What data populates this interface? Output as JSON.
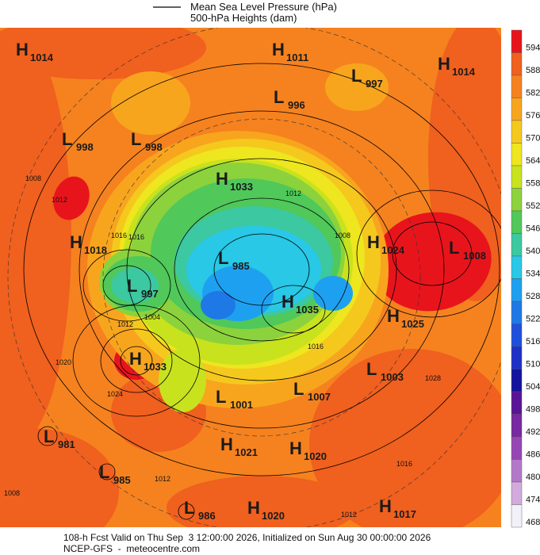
{
  "legend": {
    "line1": "Mean Sea Level Pressure (hPa)",
    "line2": "500-hPa Heights (dam)"
  },
  "centers": [
    {
      "type": "H",
      "value": 1014
    },
    {
      "type": "H",
      "value": 1011
    },
    {
      "type": "L",
      "value": 997
    },
    {
      "type": "H",
      "value": 1014
    },
    {
      "type": "L",
      "value": 996
    },
    {
      "type": "L",
      "value": 998
    },
    {
      "type": "L",
      "value": 998
    },
    {
      "type": "H",
      "value": 1033
    },
    {
      "type": "H",
      "value": 1018
    },
    {
      "type": "H",
      "value": 1024
    },
    {
      "type": "L",
      "value": 1008
    },
    {
      "type": "L",
      "value": 985
    },
    {
      "type": "L",
      "value": 997
    },
    {
      "type": "H",
      "value": 1035
    },
    {
      "type": "H",
      "value": 1025
    },
    {
      "type": "H",
      "value": 1033
    },
    {
      "type": "L",
      "value": 1003
    },
    {
      "type": "L",
      "value": 1007
    },
    {
      "type": "L",
      "value": 1001
    },
    {
      "type": "L",
      "value": 981
    },
    {
      "type": "H",
      "value": 1021
    },
    {
      "type": "H",
      "value": 1020
    },
    {
      "type": "L",
      "value": 985
    },
    {
      "type": "L",
      "value": 986
    },
    {
      "type": "H",
      "value": 1020
    },
    {
      "type": "H",
      "value": 1017
    }
  ],
  "contour_labels": [
    1008,
    1012,
    1016,
    1012,
    1004,
    1020,
    1024,
    1012,
    1016,
    1016,
    1012,
    1008,
    1028,
    1016,
    1012,
    1008
  ],
  "colorbar": [
    {
      "value": 594,
      "color": "#e8141c"
    },
    {
      "value": 588,
      "color": "#f0601e"
    },
    {
      "value": 582,
      "color": "#f5821f"
    },
    {
      "value": 576,
      "color": "#f8a51e"
    },
    {
      "value": 570,
      "color": "#f5c81e"
    },
    {
      "value": 564,
      "color": "#eee61e"
    },
    {
      "value": 558,
      "color": "#c8e21e"
    },
    {
      "value": 552,
      "color": "#8cd23c"
    },
    {
      "value": 546,
      "color": "#50c85a"
    },
    {
      "value": 540,
      "color": "#3cc8a0"
    },
    {
      "value": 534,
      "color": "#28c8e6"
    },
    {
      "value": 528,
      "color": "#1ea0f0"
    },
    {
      "value": 522,
      "color": "#1e78e6"
    },
    {
      "value": 516,
      "color": "#1e50dc"
    },
    {
      "value": 510,
      "color": "#1e32c8"
    },
    {
      "value": 504,
      "color": "#1414a0"
    },
    {
      "value": 498,
      "color": "#5a1496"
    },
    {
      "value": 492,
      "color": "#7828a0"
    },
    {
      "value": 486,
      "color": "#9646b4"
    },
    {
      "value": 480,
      "color": "#b478c8"
    },
    {
      "value": 474,
      "color": "#d2aadc"
    },
    {
      "value": 468,
      "color": "#f2f0f8"
    }
  ],
  "footer": {
    "line1": "108-h Fcst Valid on Thu Sep  3 12:00:00 2026, Initialized on Sun Aug 30 00:00:00 2026",
    "line2": "NCEP-GFS  -  meteocentre.com"
  }
}
